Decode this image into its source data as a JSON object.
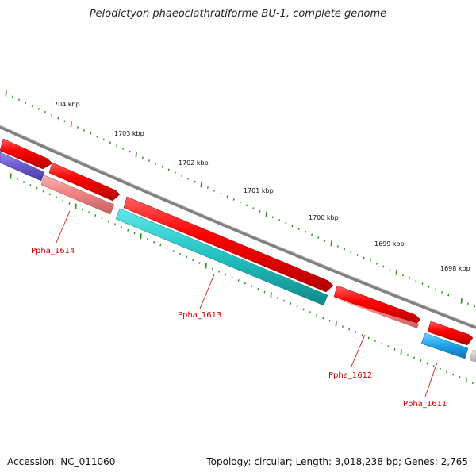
{
  "title": "Pelodictyon phaeoclathratiforme BU-1, complete genome",
  "footer": {
    "accession": "Accession: NC_011060",
    "stats": "Topology: circular; Length: 3,018,238 bp; Genes: 2,765"
  },
  "colors": {
    "gene_red": "#ff0000",
    "gene_red_light": "#f08080",
    "gene_purple": "#6a5acd",
    "gene_teal": "#20c0c0",
    "gene_blue": "#1ea0e8",
    "gene_gray": "#cccccc",
    "backbone": "#808080",
    "tick": "#2e8b22",
    "label": "#cc0000"
  },
  "scale_labels": [
    {
      "text": "1704 kbp"
    },
    {
      "text": "1703 kbp"
    },
    {
      "text": "1702 kbp"
    },
    {
      "text": "1701 kbp"
    },
    {
      "text": "1700 kbp"
    },
    {
      "text": "1699 kbp"
    },
    {
      "text": "1698 kbp"
    }
  ],
  "gene_labels": [
    {
      "text": "Ppha_1614"
    },
    {
      "text": "Ppha_1613"
    },
    {
      "text": "Ppha_1612"
    },
    {
      "text": "Ppha_1611"
    }
  ]
}
